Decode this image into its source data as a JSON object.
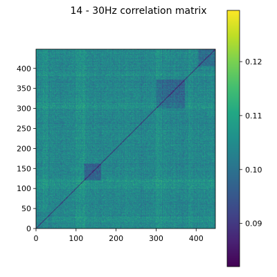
{
  "chart_data": {
    "type": "heatmap",
    "title": "14 - 30Hz correlation matrix",
    "xlabel": "",
    "ylabel": "",
    "size": 448,
    "xlim": [
      0,
      448
    ],
    "ylim": [
      0,
      448
    ],
    "x_ticks": [
      0,
      100,
      200,
      300,
      400
    ],
    "y_ticks": [
      0,
      50,
      100,
      150,
      200,
      250,
      300,
      350,
      400
    ],
    "origin": "lower",
    "grid": false,
    "diagonal_value": 0.08,
    "background_value": 0.104,
    "value_range": [
      0.082,
      0.1295
    ],
    "colormap": "viridis",
    "colorbar": {
      "ticks": [
        0.09,
        0.1,
        0.11,
        0.12
      ],
      "tick_labels": [
        "0.09",
        "0.10",
        "0.11",
        "0.12"
      ],
      "range": [
        0.082,
        0.1295
      ]
    },
    "blocks": [
      {
        "from": 300,
        "to": 372,
        "value": 0.098
      },
      {
        "from": 120,
        "to": 162,
        "value": 0.097
      },
      {
        "from": 0,
        "to": 40,
        "value": 0.102
      },
      {
        "from": 405,
        "to": 448,
        "value": 0.099
      }
    ],
    "band_rows": [
      {
        "from": 100,
        "to": 125,
        "value": 0.108
      },
      {
        "from": 300,
        "to": 315,
        "value": 0.108
      },
      {
        "from": 15,
        "to": 30,
        "value": 0.107
      },
      {
        "from": 380,
        "to": 392,
        "value": 0.107
      },
      {
        "from": 255,
        "to": 265,
        "value": 0.103
      }
    ]
  },
  "colors": {
    "axis": "#000000",
    "background": "#ffffff"
  }
}
